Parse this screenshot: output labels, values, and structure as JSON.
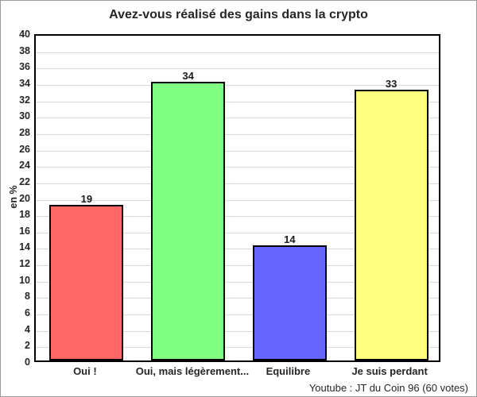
{
  "chart_data": {
    "type": "bar",
    "title": "Avez-vous réalisé des gains dans la crypto",
    "ylabel": "en %",
    "xlabel": "",
    "categories": [
      "Oui !",
      "Oui, mais légèrement...",
      "Equilibre",
      "Je suis perdant"
    ],
    "values": [
      19,
      34,
      14,
      33
    ],
    "bar_colors": [
      "#ff6666",
      "#80ff80",
      "#6666ff",
      "#ffff80"
    ],
    "bar_border_color": "#000000",
    "ylim": [
      0,
      40
    ],
    "ytick_step": 2,
    "grid": true,
    "gridline_color": "#d9d9d9",
    "legend": "none",
    "source": "Youtube : JT du Coin 96 (60 votes)"
  }
}
